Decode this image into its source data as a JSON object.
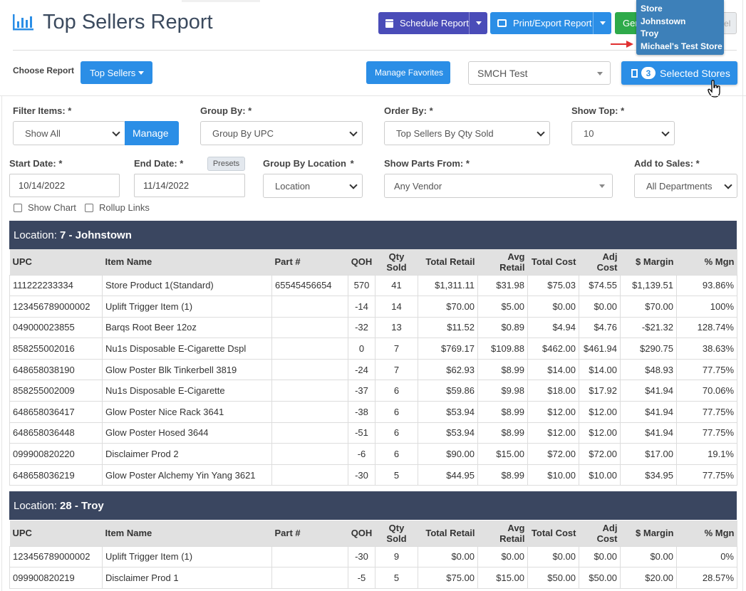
{
  "header": {
    "title": "Top Sellers Report",
    "schedule_label": "Schedule Report",
    "print_label": "Print/Export Report",
    "generate_label": "Gen",
    "cancel_label": "Cancel"
  },
  "toolbar": {
    "choose_report_label": "Choose Report",
    "report_dropdown": "Top Sellers",
    "manage_favorites": "Manage Favorites",
    "store_select": "SMCH Test",
    "selected_count": "3",
    "selected_stores_label": "Selected Stores"
  },
  "tooltip": {
    "lines": [
      "Store",
      "Johnstown",
      "Troy",
      "Michael's Test Store"
    ]
  },
  "filters": {
    "filter_items_label": "Filter Items: *",
    "filter_items_value": "Show All",
    "manage_label": "Manage",
    "group_by_label": "Group By: *",
    "group_by_value": "Group By UPC",
    "order_by_label": "Order By: *",
    "order_by_value": "Top Sellers By Qty Sold",
    "show_top_label": "Show Top: *",
    "show_top_value": "10",
    "start_date_label": "Start Date: *",
    "start_date_value": "10/14/2022",
    "end_date_label": "End Date: *",
    "end_date_value": "11/14/2022",
    "presets_label": "Presets",
    "group_by_location_label": "Group By Location",
    "group_by_location_req": "*",
    "group_by_location_value": "Location",
    "show_parts_label": "Show Parts From: *",
    "show_parts_value": "Any Vendor",
    "add_to_sales_label": "Add to Sales: *",
    "add_to_sales_value": "All Departments",
    "show_chart_label": "Show Chart",
    "rollup_links_label": "Rollup Links"
  },
  "columns": [
    "UPC",
    "Item Name",
    "Part #",
    "QOH",
    "Qty Sold",
    "Total Retail",
    "Avg Retail",
    "Total Cost",
    "Adj Cost",
    "$ Margin",
    "% Mgn"
  ],
  "sections": [
    {
      "location_prefix": "Location: ",
      "location_name": "7 - Johnstown",
      "rows": [
        [
          "111222233334",
          "Store Product 1(Standard)",
          "65545456654",
          "570",
          "41",
          "$1,311.11",
          "$31.98",
          "$75.03",
          "$74.55",
          "$1,139.51",
          "93.86%"
        ],
        [
          "123456789000002",
          "Uplift Trigger Item (1)",
          "",
          "-14",
          "14",
          "$70.00",
          "$5.00",
          "$0.00",
          "$0.00",
          "$70.00",
          "100%"
        ],
        [
          "049000023855",
          "Barqs Root Beer 12oz",
          "",
          "-32",
          "13",
          "$11.52",
          "$0.89",
          "$4.94",
          "$4.76",
          "-$21.32",
          "128.74%"
        ],
        [
          "858255002016",
          "Nu1s Disposable E-Cigarette Dspl",
          "",
          "0",
          "7",
          "$769.17",
          "$109.88",
          "$462.00",
          "$461.94",
          "$290.75",
          "38.63%"
        ],
        [
          "648658038190",
          "Glow Poster Blk Tinkerbell 3819",
          "",
          "-24",
          "7",
          "$62.93",
          "$8.99",
          "$14.00",
          "$14.00",
          "$48.93",
          "77.75%"
        ],
        [
          "858255002009",
          "Nu1s Disposable E-Cigarette",
          "",
          "-37",
          "6",
          "$59.86",
          "$9.98",
          "$18.00",
          "$17.92",
          "$41.94",
          "70.06%"
        ],
        [
          "648658036417",
          "Glow Poster Nice Rack 3641",
          "",
          "-38",
          "6",
          "$53.94",
          "$8.99",
          "$12.00",
          "$12.00",
          "$41.94",
          "77.75%"
        ],
        [
          "648658036448",
          "Glow Poster Hosed 3644",
          "",
          "-51",
          "6",
          "$53.94",
          "$8.99",
          "$12.00",
          "$12.00",
          "$41.94",
          "77.75%"
        ],
        [
          "099900820220",
          "Disclaimer Prod 2",
          "",
          "-6",
          "6",
          "$90.00",
          "$15.00",
          "$72.00",
          "$72.00",
          "$17.00",
          "19.1%"
        ],
        [
          "648658036219",
          "Glow Poster Alchemy Yin Yang 3621",
          "",
          "-30",
          "5",
          "$44.95",
          "$8.99",
          "$10.00",
          "$10.00",
          "$34.95",
          "77.75%"
        ]
      ]
    },
    {
      "location_prefix": "Location: ",
      "location_name": "28 - Troy",
      "rows": [
        [
          "123456789000002",
          "Uplift Trigger Item (1)",
          "",
          "-30",
          "9",
          "$0.00",
          "$0.00",
          "$0.00",
          "$0.00",
          "$0.00",
          "0%"
        ],
        [
          "099900820219",
          "Disclaimer Prod 1",
          "",
          "-5",
          "5",
          "$75.00",
          "$15.00",
          "$50.00",
          "$50.00",
          "$20.00",
          "28.57%"
        ]
      ]
    }
  ]
}
